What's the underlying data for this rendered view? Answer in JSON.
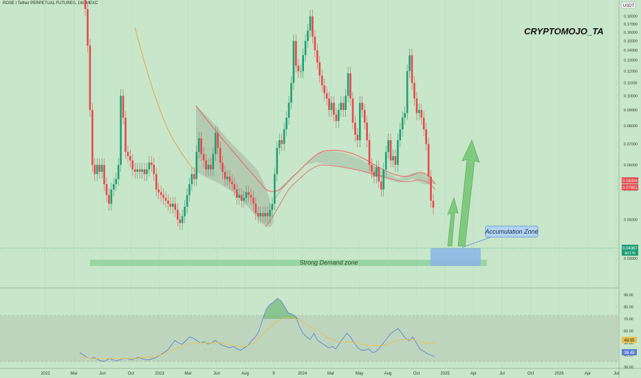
{
  "header": {
    "symbol_line": "ROSE / Tether PERPETUAL FUTURES, 1W, MEXC",
    "watermark": "CRYPTOMOJO_TA",
    "currency": "USDT"
  },
  "colors": {
    "background": "#c8e6c9",
    "up": "#1e9e74",
    "down": "#e5484d",
    "ma_fast": "#e57373",
    "ma_slow": "#e5a24b",
    "rsi_line": "#5c7fd6",
    "rsi_ma": "#e8c24d",
    "demand_zone": "#8fd19e",
    "accumulation_zone": "#8ab4e8",
    "arrow": "#78c878"
  },
  "chart_data": [
    {
      "type": "candlestick",
      "title": "ROSE / Tether PERPETUAL FUTURES, 1W, MEXC",
      "price_axis": {
        "scale": "log",
        "ylim": [
          0.03,
          0.19
        ],
        "ticks": [
          "0.18000",
          "0.17000",
          "0.16000",
          "0.15000",
          "0.14000",
          "0.13000",
          "0.12000",
          "0.11000",
          "0.10000",
          "0.09000",
          "0.08000",
          "0.07000",
          "0.06000",
          "0.05000",
          "0.04000",
          "0.03000"
        ]
      },
      "time_axis": {
        "ticks": [
          "2022",
          "Mar",
          "Jun",
          "Oct",
          "2023",
          "Mar",
          "Jun",
          "Aug",
          "9",
          "2024",
          "Mar",
          "May",
          "Aug",
          "Oct",
          "2025",
          "Apr",
          "Jul",
          "Oct",
          "2026",
          "Apr",
          "Jul"
        ]
      },
      "price_labels": [
        {
          "value": "0.08304",
          "color": "#e5484d"
        },
        {
          "value": "0.07851",
          "color": "#e5484d"
        },
        {
          "value": "0.04367",
          "sub": "6d 17h",
          "color": "#1e9e74"
        }
      ],
      "candle_closes": [
        0.19,
        0.145,
        0.09,
        0.06,
        0.056,
        0.06,
        0.057,
        0.06,
        0.052,
        0.048,
        0.045,
        0.05,
        0.052,
        0.054,
        0.06,
        0.1,
        0.085,
        0.066,
        0.064,
        0.062,
        0.058,
        0.057,
        0.058,
        0.057,
        0.058,
        0.056,
        0.058,
        0.061,
        0.06,
        0.056,
        0.05,
        0.049,
        0.048,
        0.047,
        0.046,
        0.045,
        0.044,
        0.045,
        0.043,
        0.04,
        0.039,
        0.041,
        0.044,
        0.048,
        0.052,
        0.056,
        0.054,
        0.066,
        0.073,
        0.065,
        0.062,
        0.058,
        0.06,
        0.058,
        0.065,
        0.076,
        0.068,
        0.061,
        0.057,
        0.054,
        0.055,
        0.053,
        0.052,
        0.05,
        0.047,
        0.048,
        0.046,
        0.047,
        0.049,
        0.048,
        0.047,
        0.045,
        0.042,
        0.041,
        0.042,
        0.041,
        0.042,
        0.041,
        0.043,
        0.045,
        0.056,
        0.068,
        0.072,
        0.07,
        0.078,
        0.085,
        0.095,
        0.11,
        0.15,
        0.125,
        0.12,
        0.12,
        0.135,
        0.15,
        0.162,
        0.18,
        0.155,
        0.14,
        0.128,
        0.116,
        0.108,
        0.102,
        0.098,
        0.09,
        0.095,
        0.087,
        0.083,
        0.09,
        0.095,
        0.09,
        0.1,
        0.118,
        0.098,
        0.082,
        0.075,
        0.072,
        0.095,
        0.09,
        0.082,
        0.072,
        0.06,
        0.057,
        0.055,
        0.059,
        0.053,
        0.05,
        0.058,
        0.066,
        0.072,
        0.062,
        0.064,
        0.06,
        0.072,
        0.078,
        0.085,
        0.088,
        0.12,
        0.135,
        0.11,
        0.098,
        0.088,
        0.09,
        0.085,
        0.078,
        0.07,
        0.055,
        0.046,
        0.0437
      ],
      "ma_fast_label": "",
      "annotations": [
        "Strong Demand zone",
        "Accumulation Zone"
      ]
    },
    {
      "type": "line",
      "title": "",
      "ylim": [
        30,
        90
      ],
      "ticks": [
        "90.00",
        "80.00",
        "70.00",
        "60.00",
        "50.00",
        "40.00",
        "30.00"
      ],
      "band": [
        30,
        70
      ],
      "value_labels": [
        {
          "value": "49.55",
          "color": "#e8c24d"
        },
        {
          "value": "38.49",
          "color": "#5c7fd6"
        }
      ],
      "rsi": [
        42,
        40,
        38,
        37,
        38,
        36,
        35,
        35,
        37,
        36,
        35,
        36,
        37,
        37,
        36,
        37,
        38,
        37,
        36,
        36,
        37,
        38,
        40,
        42,
        44,
        48,
        52,
        50,
        49,
        52,
        55,
        54,
        52,
        50,
        51,
        49,
        50,
        52,
        50,
        48,
        47,
        46,
        47,
        45,
        44,
        46,
        48,
        52,
        55,
        60,
        70,
        78,
        82,
        84,
        87,
        85,
        80,
        75,
        74,
        72,
        64,
        58,
        55,
        53,
        58,
        52,
        50,
        48,
        46,
        47,
        45,
        50,
        54,
        58,
        55,
        50,
        46,
        44,
        44,
        45,
        42,
        43,
        46,
        50,
        54,
        58,
        60,
        62,
        58,
        54,
        52,
        55,
        50,
        45,
        43,
        41,
        40,
        38.5
      ],
      "rsi_ma": [
        38,
        38,
        38,
        37,
        37,
        37,
        37,
        37,
        37,
        37,
        37,
        37,
        37,
        37,
        37,
        37,
        37,
        38,
        38,
        38,
        38,
        39,
        40,
        41,
        42,
        44,
        45,
        46,
        47,
        48,
        49,
        50,
        50,
        50,
        50,
        50,
        50,
        50,
        50,
        50,
        49,
        48,
        48,
        47,
        47,
        47,
        48,
        49,
        51,
        54,
        57,
        60,
        63,
        66,
        68,
        70,
        71,
        71,
        71,
        70,
        69,
        67,
        65,
        63,
        62,
        60,
        58,
        56,
        54,
        53,
        52,
        51,
        51,
        51,
        51,
        50,
        50,
        49,
        49,
        48,
        48,
        48,
        48,
        48,
        49,
        50,
        51,
        52,
        53,
        53,
        53,
        53,
        52,
        51,
        50,
        50,
        49.8,
        49.55
      ]
    }
  ]
}
